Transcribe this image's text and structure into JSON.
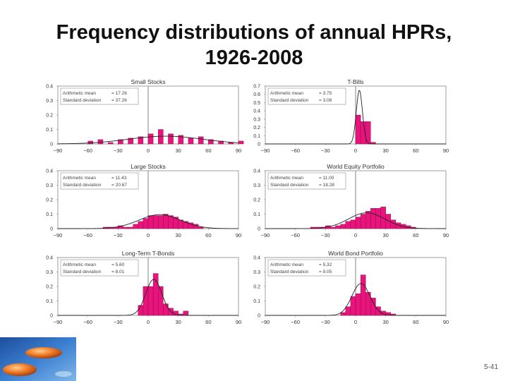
{
  "slide": {
    "title_line1": "Frequency distributions of annual HPRs,",
    "title_line2": "1926-2008",
    "page_number": "5-41"
  },
  "colors": {
    "bar": "#e8147c",
    "bar_stroke": "#7a0a44",
    "curve": "#222222",
    "frame": "#888888",
    "box_stroke": "#8a8aa0"
  },
  "chart_data": [
    {
      "type": "bar",
      "title": "Small Stocks",
      "mean_label": "Arithmetic mean",
      "mean_value": "= 17.26",
      "sd_label": "Standard deviation",
      "sd_value": "= 37.26",
      "mean": 17.26,
      "sd": 37.26,
      "ylim": [
        0,
        0.4
      ],
      "xlim": [
        -90,
        90
      ],
      "yticks": [
        "0.4",
        "0.3",
        "0.2",
        "0.1",
        "0"
      ],
      "ytick_values": [
        0.4,
        0.3,
        0.2,
        0.1,
        0
      ],
      "xticks": [
        "-90",
        "-60",
        "-30",
        "0",
        "30",
        "60",
        "90"
      ],
      "xtick_values": [
        -90,
        -60,
        -30,
        0,
        30,
        60,
        90
      ],
      "bins": [
        -60,
        -50,
        -40,
        -30,
        -20,
        -10,
        0,
        10,
        20,
        30,
        40,
        50,
        60,
        70,
        80,
        90
      ],
      "bin_width": 5,
      "values": [
        0.02,
        0.03,
        0.01,
        0.03,
        0.04,
        0.05,
        0.07,
        0.1,
        0.07,
        0.06,
        0.04,
        0.05,
        0.03,
        0.02,
        0.01,
        0.02
      ]
    },
    {
      "type": "bar",
      "title": "T-Bills",
      "mean_label": "Arithmetic mean",
      "mean_value": "= 3.75",
      "sd_label": "Standard deviation",
      "sd_value": "= 3.08",
      "mean": 3.75,
      "sd": 3.08,
      "ylim": [
        0,
        0.7
      ],
      "xlim": [
        -90,
        90
      ],
      "yticks": [
        "0.7",
        "0.6",
        "0.5",
        "0.4",
        "0.3",
        "0.2",
        "0.1",
        "0"
      ],
      "ytick_values": [
        0.7,
        0.6,
        0.5,
        0.4,
        0.3,
        0.2,
        0.1,
        0
      ],
      "xticks": [
        "-90",
        "-60",
        "-30",
        "0",
        "30",
        "60",
        "90"
      ],
      "xtick_values": [
        -90,
        -60,
        -30,
        0,
        30,
        60,
        90
      ],
      "bins": [
        0,
        5,
        10,
        15
      ],
      "bin_width": 5,
      "values": [
        0.35,
        0.27,
        0.27,
        0.02
      ]
    },
    {
      "type": "bar",
      "title": "Large Stocks",
      "mean_label": "Arithmetic mean",
      "mean_value": "= 11.43",
      "sd_label": "Standard deviation",
      "sd_value": "= 20.67",
      "mean": 11.43,
      "sd": 20.67,
      "ylim": [
        0,
        0.4
      ],
      "xlim": [
        -90,
        90
      ],
      "yticks": [
        "0.4",
        "0.3",
        "0.2",
        "0.1",
        "0"
      ],
      "ytick_values": [
        0.4,
        0.3,
        0.2,
        0.1,
        0
      ],
      "xticks": [
        "-90",
        "-60",
        "-30",
        "0",
        "30",
        "60",
        "90"
      ],
      "xtick_values": [
        -90,
        -60,
        -30,
        0,
        30,
        60,
        90
      ],
      "bins": [
        -45,
        -40,
        -35,
        -30,
        -25,
        -20,
        -15,
        -10,
        -5,
        0,
        5,
        10,
        15,
        20,
        25,
        30,
        35,
        40,
        45,
        50
      ],
      "bin_width": 5,
      "values": [
        0.01,
        0.01,
        0.01,
        0.02,
        0.01,
        0.01,
        0.03,
        0.05,
        0.07,
        0.09,
        0.09,
        0.09,
        0.1,
        0.09,
        0.08,
        0.06,
        0.05,
        0.04,
        0.03,
        0.01
      ]
    },
    {
      "type": "bar",
      "title": "World Equity Portfolio",
      "mean_label": "Arithmetic mean",
      "mean_value": "= 11.00",
      "sd_label": "Standard deviation",
      "sd_value": "= 18.28",
      "mean": 11.0,
      "sd": 18.28,
      "ylim": [
        0,
        0.4
      ],
      "xlim": [
        -90,
        90
      ],
      "yticks": [
        "0.4",
        "0.3",
        "0.2",
        "0.1",
        "0"
      ],
      "ytick_values": [
        0.4,
        0.3,
        0.2,
        0.1,
        0
      ],
      "xticks": [
        "-90",
        "-60",
        "-30",
        "0",
        "30",
        "60",
        "90"
      ],
      "xtick_values": [
        -90,
        -60,
        -30,
        0,
        30,
        60,
        90
      ],
      "bins": [
        -45,
        -40,
        -35,
        -30,
        -25,
        -20,
        -15,
        -10,
        -5,
        0,
        5,
        10,
        15,
        20,
        25,
        30,
        35,
        40,
        45,
        50,
        55
      ],
      "bin_width": 5,
      "values": [
        0.01,
        0.01,
        0.01,
        0.02,
        0.01,
        0.02,
        0.03,
        0.05,
        0.06,
        0.08,
        0.1,
        0.12,
        0.14,
        0.14,
        0.15,
        0.1,
        0.06,
        0.04,
        0.03,
        0.02,
        0.01
      ]
    },
    {
      "type": "bar",
      "title": "Long-Term T-Bonds",
      "mean_label": "Arithmetic mean",
      "mean_value": "= 5.60",
      "sd_label": "Standard deviation",
      "sd_value": "= 8.01",
      "mean": 5.6,
      "sd": 8.01,
      "ylim": [
        0,
        0.4
      ],
      "xlim": [
        -90,
        90
      ],
      "yticks": [
        "0.4",
        "0.3",
        "0.2",
        "0.1",
        "0"
      ],
      "ytick_values": [
        0.4,
        0.3,
        0.2,
        0.1,
        0
      ],
      "xticks": [
        "-90",
        "-60",
        "-30",
        "0",
        "30",
        "60",
        "90"
      ],
      "xtick_values": [
        -90,
        -60,
        -30,
        0,
        30,
        60,
        90
      ],
      "bins": [
        -10,
        -5,
        0,
        5,
        10,
        15,
        20,
        25,
        30,
        35
      ],
      "bin_width": 5,
      "values": [
        0.07,
        0.2,
        0.2,
        0.29,
        0.2,
        0.08,
        0.05,
        0.03,
        0.01,
        0.03
      ]
    },
    {
      "type": "bar",
      "title": "World Bond Portfolio",
      "mean_label": "Arithmetic mean",
      "mean_value": "= 5.32",
      "sd_label": "Standard deviation",
      "sd_value": "= 9.05",
      "mean": 5.32,
      "sd": 9.05,
      "ylim": [
        0,
        0.4
      ],
      "xlim": [
        -90,
        90
      ],
      "yticks": [
        "0.4",
        "0.3",
        "0.2",
        "0.1",
        "0"
      ],
      "ytick_values": [
        0.4,
        0.3,
        0.2,
        0.1,
        0
      ],
      "xticks": [
        "-90",
        "-60",
        "-30",
        "0",
        "30",
        "60",
        "90"
      ],
      "xtick_values": [
        -90,
        -60,
        -30,
        0,
        30,
        60,
        90
      ],
      "bins": [
        -15,
        -10,
        -5,
        0,
        5,
        10,
        15,
        20,
        25,
        30,
        35
      ],
      "bin_width": 5,
      "values": [
        0.02,
        0.06,
        0.13,
        0.15,
        0.28,
        0.16,
        0.12,
        0.06,
        0.03,
        0.02,
        0.01
      ]
    }
  ]
}
